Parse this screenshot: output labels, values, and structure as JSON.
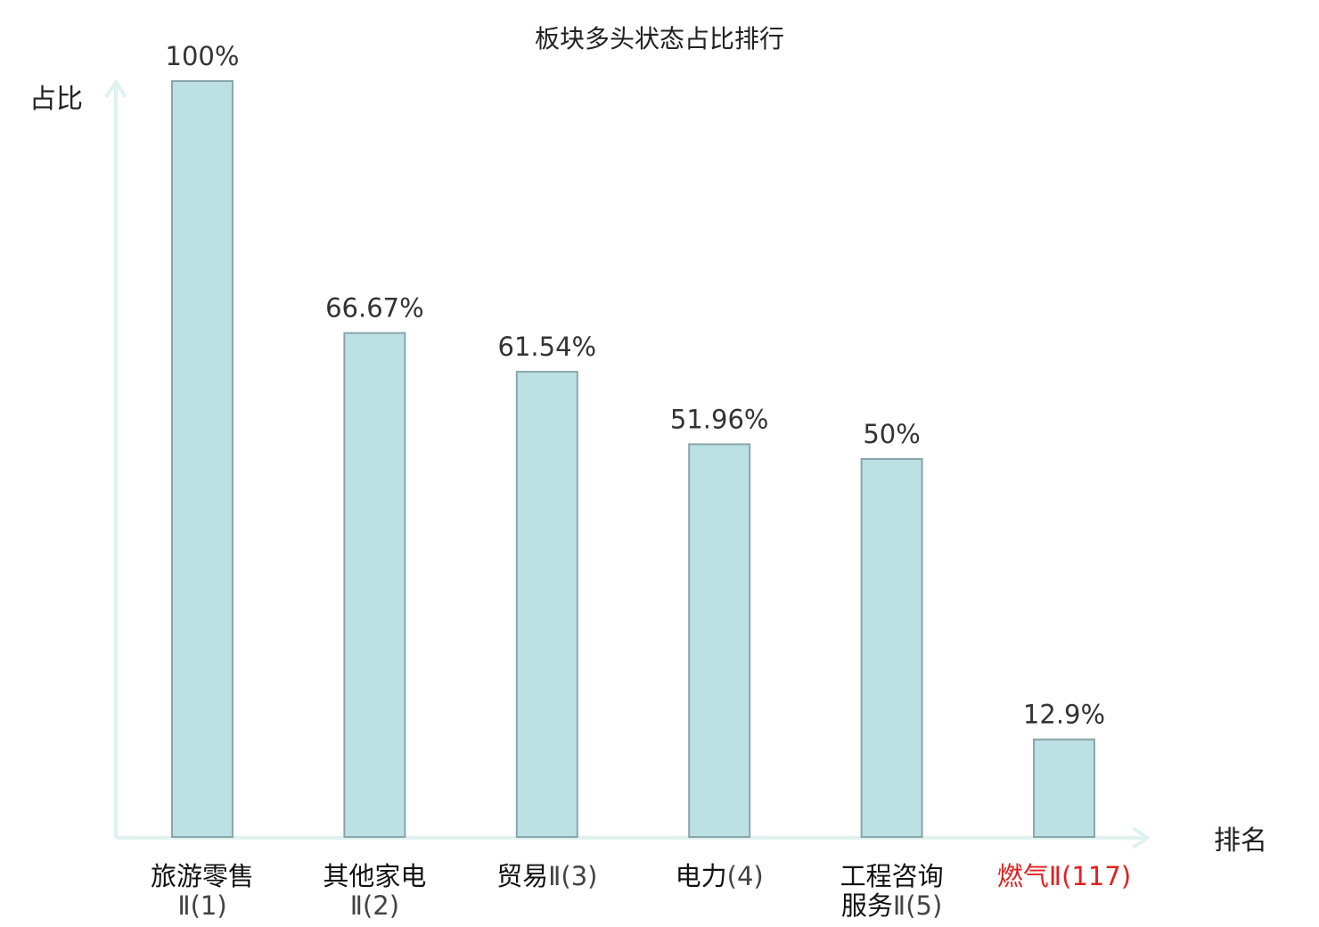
{
  "chart_data": {
    "type": "bar",
    "title": "板块多头状态占比排行",
    "ylabel": "占比",
    "xlabel": "排名",
    "ylim": [
      0,
      100
    ],
    "grid": false,
    "categories": [
      {
        "name_line1": "旅游零售",
        "name_line2": "Ⅱ(1)",
        "highlight": false
      },
      {
        "name_line1": "其他家电",
        "name_line2": "Ⅱ(2)",
        "highlight": false
      },
      {
        "name_line1": "贸易Ⅱ(3)",
        "name_line2": "",
        "highlight": false
      },
      {
        "name_line1": "电力(4)",
        "name_line2": "",
        "highlight": false
      },
      {
        "name_line1": "工程咨询",
        "name_line2": "服务Ⅱ(5)",
        "highlight": false
      },
      {
        "name_line1": "燃气Ⅱ(117)",
        "name_line2": "",
        "highlight": true
      }
    ],
    "values": [
      100,
      66.67,
      61.54,
      51.96,
      50,
      12.9
    ],
    "value_labels": [
      "100%",
      "66.67%",
      "61.54%",
      "51.96%",
      "50%",
      "12.9%"
    ],
    "colors": {
      "bar_fill": "#bce0e3",
      "bar_stroke": "#88a6aa",
      "axis": "#e0f2f0",
      "highlight_text": "#e02020"
    }
  }
}
